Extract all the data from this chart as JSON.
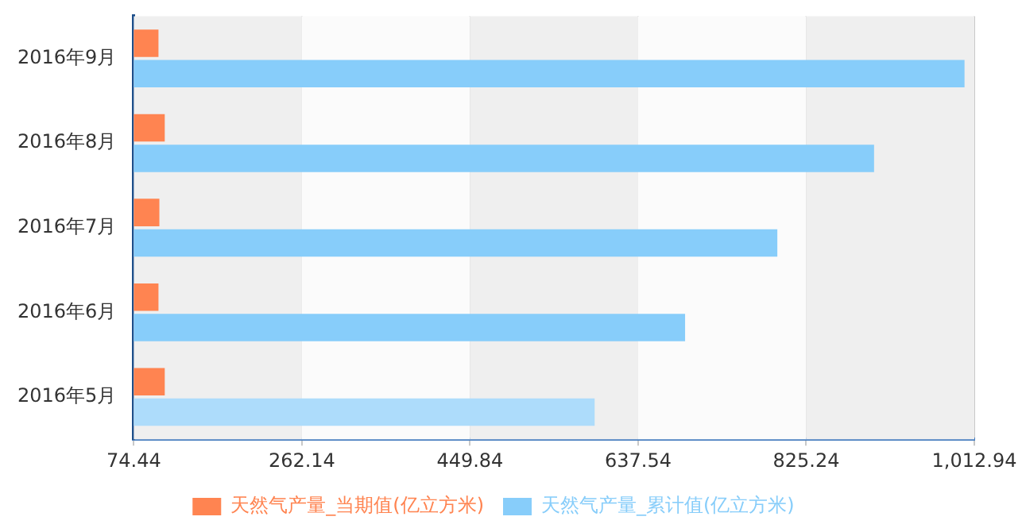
{
  "chart_data": {
    "type": "bar",
    "orientation": "horizontal",
    "categories": [
      "2016年9月",
      "2016年8月",
      "2016年7月",
      "2016年6月",
      "2016年5月"
    ],
    "series": [
      {
        "name": "天然气产量_当期值(亿立方米)",
        "color": "#ff8451",
        "values": [
          102,
          109,
          103,
          102,
          109
        ]
      },
      {
        "name": "天然气产量_累计值(亿立方米)",
        "color": "#87cdfa",
        "colors": [
          "#87cdfa",
          "#87cdfa",
          "#87cdfa",
          "#87cdfa",
          "#addcfb"
        ],
        "values": [
          1002,
          901,
          793,
          690,
          589
        ]
      }
    ],
    "xlim": [
      74.44,
      1012.94
    ],
    "xticks": [
      {
        "value": 74.44,
        "label": "74.44"
      },
      {
        "value": 262.14,
        "label": "262.14"
      },
      {
        "value": 449.84,
        "label": "449.84"
      },
      {
        "value": 637.54,
        "label": "637.54"
      },
      {
        "value": 825.24,
        "label": "825.24"
      },
      {
        "value": 1012.94,
        "label": "1,012.94"
      }
    ],
    "grid": "x",
    "legend": "bottom"
  }
}
